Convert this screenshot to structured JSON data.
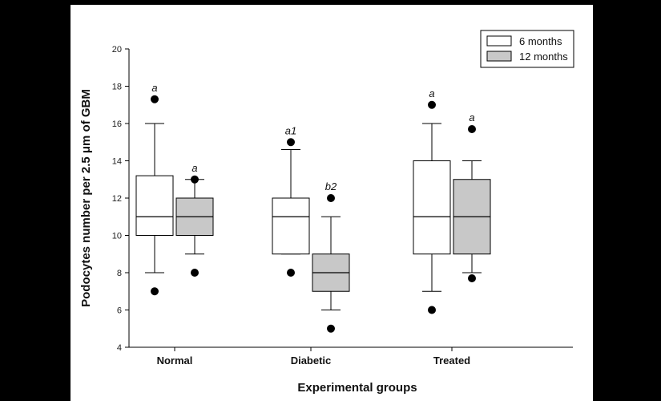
{
  "chart_data": {
    "type": "box",
    "xlabel": "Experimental groups",
    "ylabel": "Podocytes number per  2.5 μm of GBM",
    "ylim": [
      4,
      20
    ],
    "yticks": [
      4,
      6,
      8,
      10,
      12,
      14,
      16,
      18,
      20
    ],
    "categories": [
      "Normal",
      "Diabetic",
      "Treated"
    ],
    "legend": {
      "placement": "top-right"
    },
    "series": [
      {
        "name": "6 months",
        "color": "#ffffff",
        "boxes": [
          {
            "category": "Normal",
            "whisker_low": 8,
            "q1": 10,
            "median": 11,
            "q3": 13.2,
            "whisker_high": 16,
            "outliers": [
              7,
              17.3
            ],
            "annotation": "a"
          },
          {
            "category": "Diabetic",
            "whisker_low": 9,
            "q1": 9,
            "median": 11,
            "q3": 12,
            "whisker_high": 14.6,
            "outliers": [
              8,
              15
            ],
            "annotation": "a1"
          },
          {
            "category": "Treated",
            "whisker_low": 7,
            "q1": 9,
            "median": 11,
            "q3": 14,
            "whisker_high": 16,
            "outliers": [
              6,
              17
            ],
            "annotation": "a"
          }
        ]
      },
      {
        "name": "12 months",
        "color": "#c8c8c8",
        "boxes": [
          {
            "category": "Normal",
            "whisker_low": 9,
            "q1": 10,
            "median": 11,
            "q3": 12,
            "whisker_high": 13,
            "outliers": [
              8,
              13
            ],
            "annotation": "a"
          },
          {
            "category": "Diabetic",
            "whisker_low": 6,
            "q1": 7,
            "median": 8,
            "q3": 9,
            "whisker_high": 11,
            "outliers": [
              5,
              12
            ],
            "annotation": "b2"
          },
          {
            "category": "Treated",
            "whisker_low": 8,
            "q1": 9,
            "median": 11,
            "q3": 13,
            "whisker_high": 14,
            "outliers": [
              7.7,
              15.7
            ],
            "annotation": "a"
          }
        ]
      }
    ]
  }
}
